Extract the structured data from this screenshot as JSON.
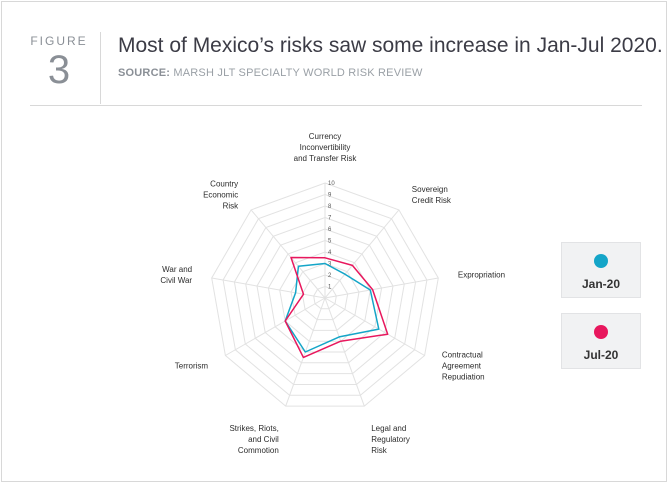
{
  "figure": {
    "label": "FIGURE",
    "number": "3"
  },
  "title": "Most of Mexico’s risks saw some increase in Jan-Jul 2020.",
  "source": {
    "prefix": "SOURCE:",
    "text": "MARSH JLT SPECIALTY WORLD RISK REVIEW"
  },
  "chart_data": {
    "type": "radar",
    "rmin": 0,
    "rmax": 10,
    "ticks": [
      "1",
      "2",
      "3",
      "4",
      "5",
      "6",
      "7",
      "8",
      "9",
      "10"
    ],
    "axes": [
      [
        "Currency",
        "Inconvertibility",
        "and Transfer Risk"
      ],
      [
        "Sovereign",
        "Credit Risk"
      ],
      [
        "Expropriation"
      ],
      [
        "Contractual",
        "Agreement",
        "Repudiation"
      ],
      [
        "Legal and",
        "Regulatory",
        "Risk"
      ],
      [
        "Strikes, Riots,",
        "and Civil",
        "Commotion"
      ],
      [
        "Terrorism"
      ],
      [
        "War and",
        "Civil War"
      ],
      [
        "Country",
        "Economic",
        "Risk"
      ]
    ],
    "series": [
      {
        "name": "Jan-20",
        "color": "#14a5c8",
        "values": [
          3.0,
          2.7,
          4.0,
          5.4,
          3.6,
          5.0,
          4.0,
          2.6,
          3.6
        ]
      },
      {
        "name": "Jul-20",
        "color": "#e8175d",
        "values": [
          3.5,
          3.7,
          4.2,
          6.3,
          4.0,
          5.5,
          4.0,
          1.9,
          4.6
        ]
      }
    ],
    "grid": true,
    "legend_position": "right"
  }
}
